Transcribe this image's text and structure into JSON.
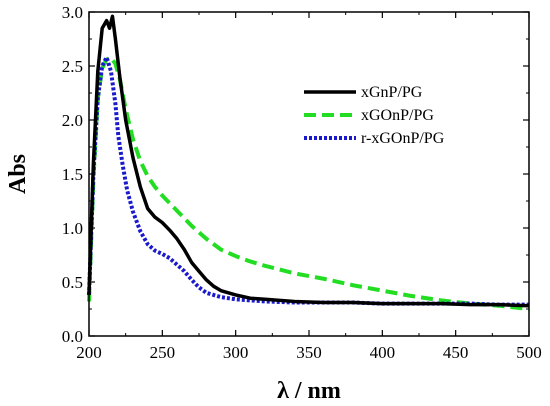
{
  "chart_data": {
    "type": "line",
    "xlabel": "λ / nm",
    "ylabel": "Abs",
    "xlim": [
      200,
      500
    ],
    "ylim": [
      0.0,
      3.0
    ],
    "xticks": [
      "200",
      "250",
      "300",
      "350",
      "400",
      "450",
      "500"
    ],
    "yticks": [
      "0.0",
      "0.5",
      "1.0",
      "1.5",
      "2.0",
      "2.5",
      "3.0"
    ],
    "grid": false,
    "legend_position": "top-right",
    "series": [
      {
        "name": "xGnP/PG",
        "color": "#000000",
        "style": "solid",
        "x": [
          200,
          203,
          206,
          209,
          212,
          214,
          216,
          218,
          221,
          225,
          230,
          235,
          240,
          245,
          250,
          255,
          260,
          265,
          270,
          275,
          280,
          285,
          290,
          295,
          300,
          310,
          320,
          340,
          360,
          380,
          400,
          420,
          440,
          460,
          480,
          500
        ],
        "y": [
          0.38,
          1.6,
          2.45,
          2.85,
          2.92,
          2.85,
          2.96,
          2.75,
          2.4,
          2.0,
          1.65,
          1.38,
          1.18,
          1.1,
          1.05,
          0.98,
          0.9,
          0.8,
          0.68,
          0.6,
          0.52,
          0.46,
          0.42,
          0.4,
          0.38,
          0.35,
          0.34,
          0.32,
          0.31,
          0.31,
          0.3,
          0.3,
          0.3,
          0.29,
          0.29,
          0.28
        ]
      },
      {
        "name": "xGOnP/PG",
        "color": "#22dd22",
        "style": "dashed",
        "x": [
          200,
          203,
          206,
          209,
          212,
          215,
          218,
          221,
          225,
          230,
          235,
          240,
          245,
          250,
          260,
          270,
          280,
          290,
          300,
          310,
          320,
          340,
          360,
          380,
          400,
          420,
          440,
          460,
          480,
          500
        ],
        "y": [
          0.32,
          1.45,
          2.2,
          2.48,
          2.56,
          2.58,
          2.52,
          2.38,
          2.1,
          1.82,
          1.62,
          1.48,
          1.38,
          1.3,
          1.16,
          1.02,
          0.9,
          0.8,
          0.74,
          0.69,
          0.65,
          0.58,
          0.53,
          0.47,
          0.42,
          0.37,
          0.33,
          0.3,
          0.28,
          0.25
        ]
      },
      {
        "name": "r-xGOnP/PG",
        "color": "#1a1acc",
        "style": "dotted",
        "x": [
          200,
          203,
          206,
          209,
          212,
          215,
          218,
          220,
          223,
          226,
          230,
          235,
          240,
          245,
          250,
          255,
          260,
          265,
          270,
          275,
          280,
          290,
          300,
          310,
          320,
          340,
          360,
          380,
          400,
          420,
          440,
          460,
          480,
          500
        ],
        "y": [
          0.38,
          1.5,
          2.2,
          2.5,
          2.58,
          2.45,
          2.15,
          1.85,
          1.58,
          1.35,
          1.15,
          0.97,
          0.85,
          0.79,
          0.76,
          0.72,
          0.66,
          0.6,
          0.52,
          0.45,
          0.4,
          0.36,
          0.34,
          0.33,
          0.32,
          0.31,
          0.31,
          0.31,
          0.3,
          0.3,
          0.3,
          0.3,
          0.29,
          0.29
        ]
      }
    ]
  }
}
